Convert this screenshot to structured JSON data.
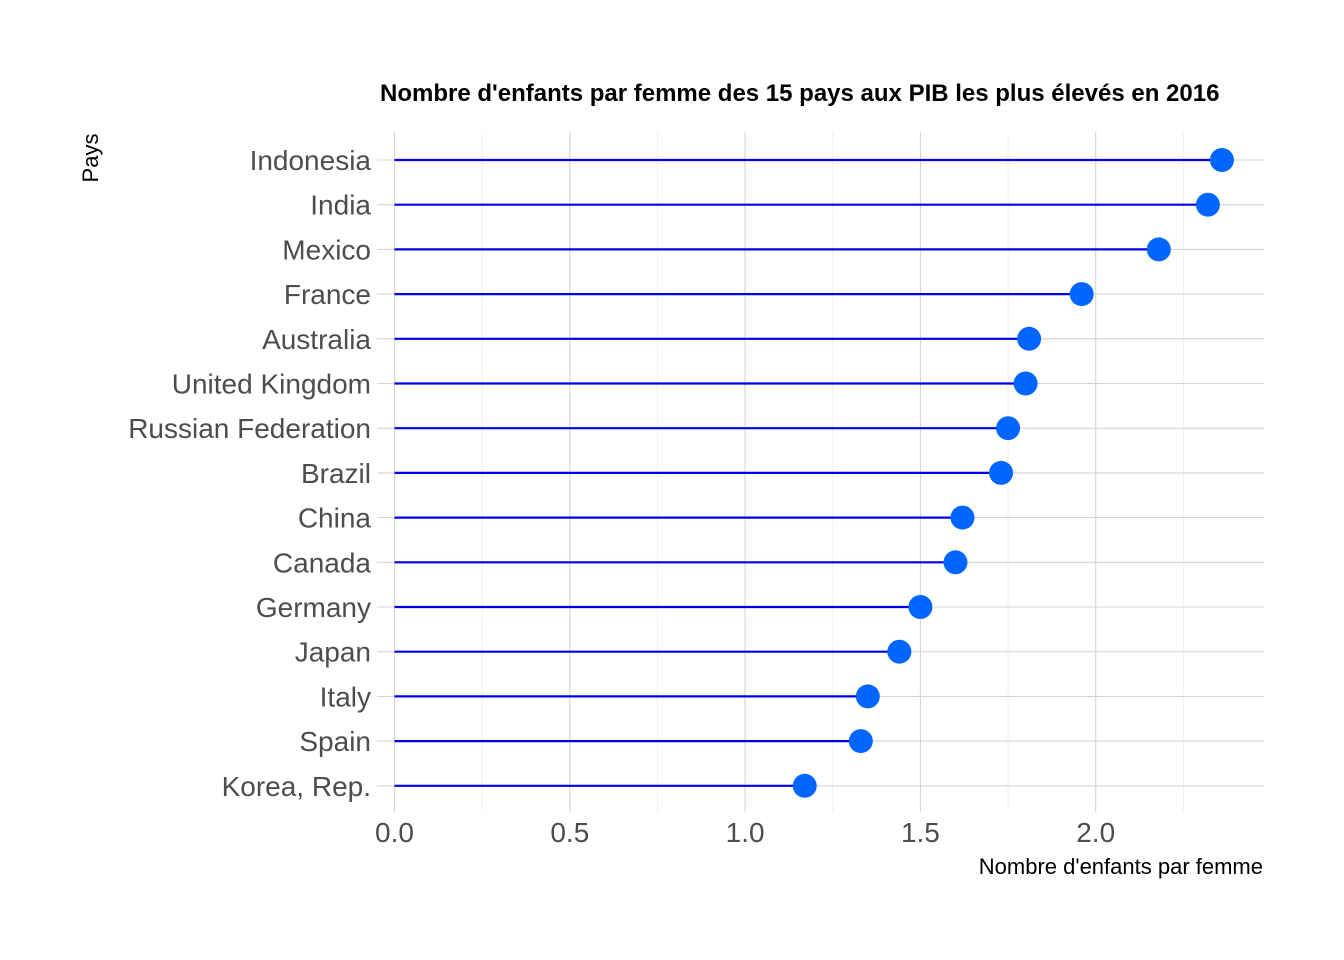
{
  "chart_data": {
    "type": "lollipop",
    "title": "Nombre d'enfants par femme des 15 pays aux PIB les plus élevés en 2016",
    "xlabel": "Nombre d'enfants par femme",
    "ylabel": "Pays",
    "xlim": [
      -0.05,
      2.48
    ],
    "xticks": [
      0.0,
      0.5,
      1.0,
      1.5,
      2.0
    ],
    "xtick_labels": [
      "0.0",
      "0.5",
      "1.0",
      "1.5",
      "2.0"
    ],
    "grid": true,
    "legend": "none",
    "categories": [
      "Indonesia",
      "India",
      "Mexico",
      "France",
      "Australia",
      "United Kingdom",
      "Russian Federation",
      "Brazil",
      "China",
      "Canada",
      "Germany",
      "Japan",
      "Italy",
      "Spain",
      "Korea, Rep."
    ],
    "values": [
      2.36,
      2.32,
      2.18,
      1.96,
      1.81,
      1.8,
      1.75,
      1.73,
      1.62,
      1.6,
      1.5,
      1.44,
      1.35,
      1.33,
      1.17
    ],
    "colors": {
      "stem": "#0000e6",
      "point": "#0066ff"
    }
  }
}
